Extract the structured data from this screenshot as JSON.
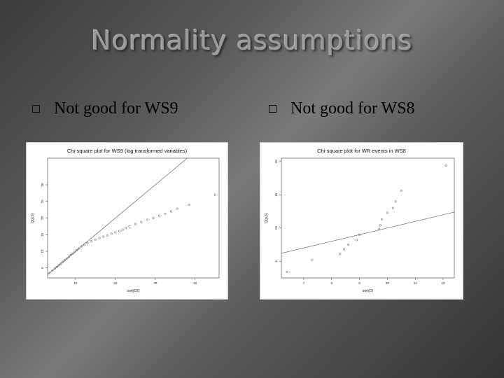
{
  "slide": {
    "title": "Normality assumptions",
    "left_bullet": "Not good for WS9",
    "right_bullet": "Not good for WS8"
  },
  "chart_data": [
    {
      "type": "scatter",
      "title": "Chi-square plot for WS9 (log transformed variables)",
      "xlabel": "sort(D2)",
      "ylabel": "Q(p,6)",
      "x_ticks": [
        "10",
        "20",
        "30",
        "40"
      ],
      "y_ticks": [
        "5",
        "10",
        "15",
        "20",
        "25",
        "30"
      ],
      "xlim": [
        3,
        46
      ],
      "ylim": [
        2,
        38
      ],
      "reference_line": {
        "slope": 1,
        "intercept": 0
      },
      "points_x": [
        3.5,
        4.2,
        4.8,
        5.3,
        5.8,
        6.3,
        6.8,
        7.3,
        7.8,
        8.3,
        8.8,
        9.3,
        9.8,
        10.3,
        10.8,
        11.5,
        12.2,
        13,
        14,
        15,
        16,
        17,
        18,
        19,
        20,
        21,
        21.8,
        22.6,
        23.5,
        25,
        26.5,
        28,
        29.5,
        31,
        32.5,
        34,
        35.5,
        38.5,
        45
      ],
      "points_y": [
        3.5,
        4.2,
        4.8,
        5.3,
        5.8,
        6.3,
        6.8,
        7.3,
        7.8,
        8.3,
        8.8,
        9.3,
        9.8,
        10.3,
        10.8,
        11.5,
        12,
        12.5,
        13,
        13.5,
        14,
        14.4,
        14.8,
        15.3,
        15.7,
        16.1,
        16.5,
        17,
        17.5,
        18.2,
        18.8,
        19.5,
        20,
        20.7,
        21.3,
        22,
        22.8,
        24,
        27
      ]
    },
    {
      "type": "scatter",
      "title": "Chi-square plot for WR events in WS8",
      "xlabel": "sort(D)",
      "ylabel": "Q(p,6)",
      "x_ticks": [
        "7",
        "8",
        "9",
        "10",
        "11",
        "12"
      ],
      "y_ticks": [
        "5",
        "10",
        "15",
        "20"
      ],
      "xlim": [
        6.2,
        12.4
      ],
      "ylim": [
        2.5,
        20.5
      ],
      "reference_line": {
        "slope": 1,
        "intercept": 0
      },
      "points_x": [
        6.4,
        7.3,
        8.3,
        8.45,
        8.6,
        8.9,
        9.0,
        9.7,
        9.75,
        9.8,
        10.0,
        10.2,
        10.3,
        10.5,
        12.1
      ],
      "points_y": [
        3.4,
        5.2,
        6.1,
        6.8,
        7.5,
        8.2,
        9.0,
        9.8,
        10.4,
        11.3,
        12.3,
        13.0,
        14.0,
        15.6,
        19.4
      ]
    }
  ]
}
